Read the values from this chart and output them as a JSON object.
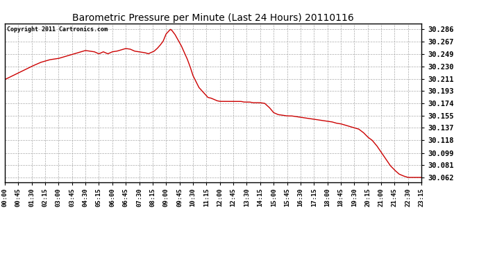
{
  "title": "Barometric Pressure per Minute (Last 24 Hours) 20110116",
  "copyright": "Copyright 2011 Cartronics.com",
  "line_color": "#cc0000",
  "bg_color": "#ffffff",
  "plot_bg_color": "#ffffff",
  "grid_color": "#aaaaaa",
  "yticks": [
    30.062,
    30.081,
    30.099,
    30.118,
    30.137,
    30.155,
    30.174,
    30.193,
    30.211,
    30.23,
    30.249,
    30.267,
    30.286
  ],
  "ylim": [
    30.055,
    30.295
  ],
  "xtick_labels": [
    "00:00",
    "00:45",
    "01:30",
    "02:15",
    "03:00",
    "03:45",
    "04:30",
    "05:15",
    "06:00",
    "06:45",
    "07:30",
    "08:15",
    "09:00",
    "09:45",
    "10:30",
    "11:15",
    "12:00",
    "12:45",
    "13:30",
    "14:15",
    "15:00",
    "15:45",
    "16:30",
    "17:15",
    "18:00",
    "18:45",
    "19:30",
    "20:15",
    "21:00",
    "21:45",
    "22:30",
    "23:15"
  ],
  "key_points": [
    [
      0,
      30.21
    ],
    [
      45,
      30.22
    ],
    [
      90,
      30.23
    ],
    [
      120,
      30.236
    ],
    [
      150,
      30.24
    ],
    [
      180,
      30.242
    ],
    [
      210,
      30.246
    ],
    [
      240,
      30.25
    ],
    [
      270,
      30.254
    ],
    [
      300,
      30.252
    ],
    [
      315,
      30.249
    ],
    [
      330,
      30.252
    ],
    [
      345,
      30.249
    ],
    [
      360,
      30.252
    ],
    [
      375,
      30.253
    ],
    [
      390,
      30.255
    ],
    [
      405,
      30.257
    ],
    [
      420,
      30.256
    ],
    [
      435,
      30.253
    ],
    [
      450,
      30.252
    ],
    [
      465,
      30.251
    ],
    [
      475,
      30.25
    ],
    [
      480,
      30.249
    ],
    [
      490,
      30.251
    ],
    [
      500,
      30.253
    ],
    [
      510,
      30.257
    ],
    [
      520,
      30.262
    ],
    [
      530,
      30.268
    ],
    [
      540,
      30.279
    ],
    [
      550,
      30.284
    ],
    [
      555,
      30.286
    ],
    [
      560,
      30.284
    ],
    [
      570,
      30.278
    ],
    [
      580,
      30.27
    ],
    [
      590,
      30.262
    ],
    [
      600,
      30.252
    ],
    [
      610,
      30.242
    ],
    [
      620,
      30.23
    ],
    [
      630,
      30.216
    ],
    [
      640,
      30.207
    ],
    [
      650,
      30.198
    ],
    [
      660,
      30.193
    ],
    [
      670,
      30.188
    ],
    [
      680,
      30.183
    ],
    [
      690,
      30.182
    ],
    [
      700,
      30.18
    ],
    [
      710,
      30.178
    ],
    [
      720,
      30.177
    ],
    [
      730,
      30.177
    ],
    [
      740,
      30.177
    ],
    [
      750,
      30.177
    ],
    [
      760,
      30.177
    ],
    [
      770,
      30.177
    ],
    [
      780,
      30.177
    ],
    [
      790,
      30.177
    ],
    [
      800,
      30.176
    ],
    [
      810,
      30.176
    ],
    [
      820,
      30.176
    ],
    [
      830,
      30.175
    ],
    [
      840,
      30.175
    ],
    [
      855,
      30.175
    ],
    [
      870,
      30.174
    ],
    [
      885,
      30.168
    ],
    [
      900,
      30.16
    ],
    [
      915,
      30.157
    ],
    [
      930,
      30.156
    ],
    [
      945,
      30.155
    ],
    [
      960,
      30.155
    ],
    [
      975,
      30.154
    ],
    [
      990,
      30.153
    ],
    [
      1020,
      30.151
    ],
    [
      1050,
      30.149
    ],
    [
      1080,
      30.147
    ],
    [
      1095,
      30.146
    ],
    [
      1110,
      30.144
    ],
    [
      1125,
      30.143
    ],
    [
      1140,
      30.141
    ],
    [
      1155,
      30.139
    ],
    [
      1170,
      30.137
    ],
    [
      1185,
      30.135
    ],
    [
      1200,
      30.13
    ],
    [
      1215,
      30.123
    ],
    [
      1230,
      30.118
    ],
    [
      1245,
      30.11
    ],
    [
      1260,
      30.1
    ],
    [
      1275,
      30.09
    ],
    [
      1290,
      30.08
    ],
    [
      1305,
      30.073
    ],
    [
      1320,
      30.067
    ],
    [
      1335,
      30.064
    ],
    [
      1350,
      30.062
    ],
    [
      1395,
      30.062
    ]
  ]
}
